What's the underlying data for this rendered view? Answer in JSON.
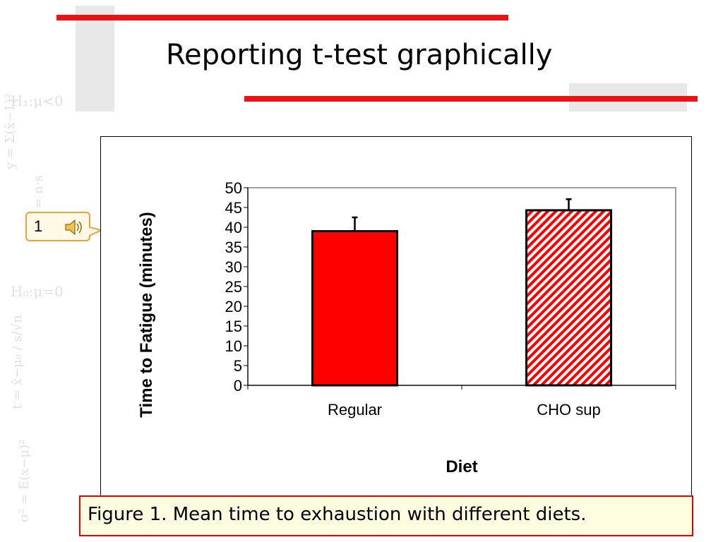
{
  "slide": {
    "title": "Reporting t-test graphically",
    "accent_color": "#ee1111",
    "caption": "Figure 1. Mean time to exhaustion with different diets."
  },
  "audio_callout": {
    "number": "1",
    "icon": "speaker-icon"
  },
  "chart_data": {
    "type": "bar",
    "categories": [
      "Regular",
      "CHO sup"
    ],
    "values": [
      39,
      44.3
    ],
    "error_bars": [
      3.5,
      2.8
    ],
    "fills": [
      "solid",
      "hatched"
    ],
    "bar_color": "#ff0000",
    "xlabel": "Diet",
    "ylabel": "Time to Fatigue (minutes)",
    "ylim": [
      0,
      50
    ],
    "yticks": [
      "0",
      "5",
      "10",
      "15",
      "20",
      "25",
      "30",
      "35",
      "40",
      "45",
      "50"
    ],
    "grid": false,
    "legend": "none"
  }
}
